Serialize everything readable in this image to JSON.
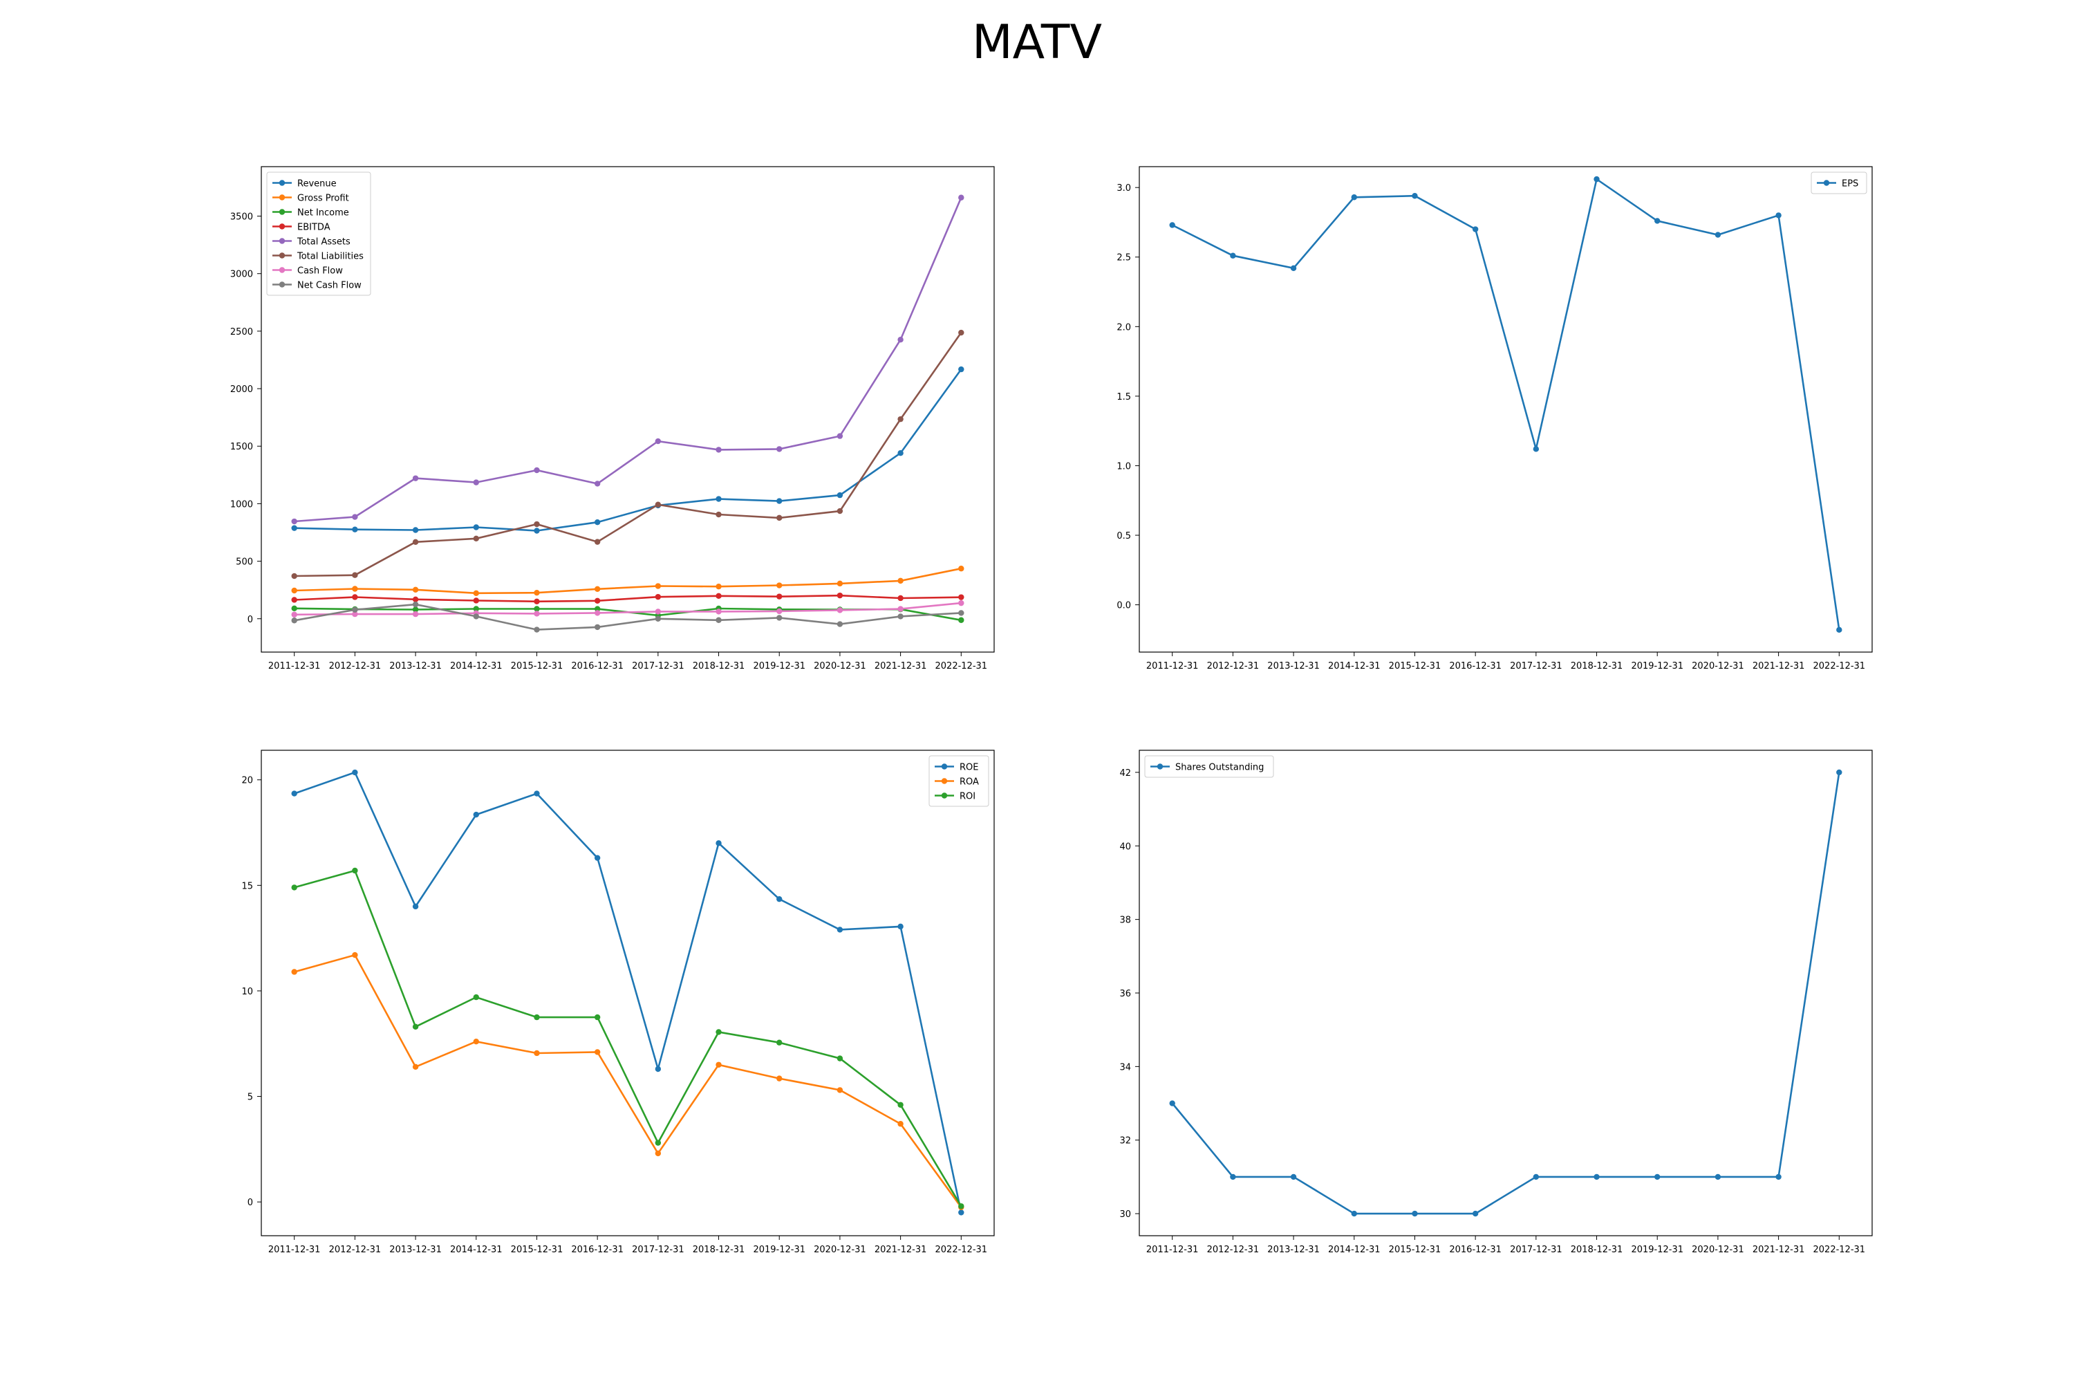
{
  "figure": {
    "title": "MATV"
  },
  "chart_data": [
    {
      "type": "line",
      "title": "",
      "xlabel": "",
      "ylabel": "",
      "x": [
        "2011-12-31",
        "2012-12-31",
        "2013-12-31",
        "2014-12-31",
        "2015-12-31",
        "2016-12-31",
        "2017-12-31",
        "2018-12-31",
        "2019-12-31",
        "2020-12-31",
        "2021-12-31",
        "2022-12-31"
      ],
      "ylim": [
        -290,
        3930
      ],
      "yticks": [
        0,
        500,
        1000,
        1500,
        2000,
        2500,
        3000,
        3500
      ],
      "grid": false,
      "legend": "upper left",
      "series": [
        {
          "name": "Revenue",
          "color": "#1f77b4",
          "values": [
            788,
            776,
            771,
            795,
            765,
            839,
            985,
            1041,
            1023,
            1074,
            1440,
            2168
          ]
        },
        {
          "name": "Gross Profit",
          "color": "#ff7f0e",
          "values": [
            245,
            260,
            252,
            222,
            226,
            258,
            284,
            280,
            290,
            306,
            330,
            436
          ]
        },
        {
          "name": "Net Income",
          "color": "#2ca02c",
          "values": [
            90,
            83,
            80,
            86,
            86,
            85,
            29,
            89,
            81,
            80,
            82,
            -12
          ]
        },
        {
          "name": "EBITDA",
          "color": "#d62728",
          "values": [
            164,
            188,
            168,
            158,
            150,
            156,
            190,
            198,
            193,
            202,
            179,
            187
          ]
        },
        {
          "name": "Total Assets",
          "color": "#9467bd",
          "values": [
            846,
            885,
            1221,
            1185,
            1291,
            1174,
            1543,
            1469,
            1475,
            1588,
            2426,
            3661
          ]
        },
        {
          "name": "Total Liabilities",
          "color": "#8c564b",
          "values": [
            371,
            379,
            667,
            697,
            822,
            668,
            992,
            906,
            877,
            936,
            1735,
            2487
          ]
        },
        {
          "name": "Cash Flow",
          "color": "#e377c2",
          "values": [
            36,
            40,
            40,
            48,
            44,
            50,
            62,
            62,
            65,
            74,
            85,
            136
          ]
        },
        {
          "name": "Net Cash Flow",
          "color": "#7f7f7f",
          "values": [
            -15,
            78,
            124,
            20,
            -95,
            -73,
            0,
            -12,
            8,
            -47,
            20,
            50
          ]
        }
      ]
    },
    {
      "type": "line",
      "title": "",
      "xlabel": "",
      "ylabel": "",
      "x": [
        "2011-12-31",
        "2012-12-31",
        "2013-12-31",
        "2014-12-31",
        "2015-12-31",
        "2016-12-31",
        "2017-12-31",
        "2018-12-31",
        "2019-12-31",
        "2020-12-31",
        "2021-12-31",
        "2022-12-31"
      ],
      "ylim": [
        -0.34,
        3.15
      ],
      "yticks": [
        0.0,
        0.5,
        1.0,
        1.5,
        2.0,
        2.5,
        3.0
      ],
      "grid": false,
      "legend": "upper right",
      "series": [
        {
          "name": "EPS",
          "color": "#1f77b4",
          "values": [
            2.73,
            2.51,
            2.42,
            2.93,
            2.94,
            2.7,
            1.12,
            3.06,
            2.76,
            2.66,
            2.8,
            -0.18
          ]
        }
      ]
    },
    {
      "type": "line",
      "title": "",
      "xlabel": "",
      "ylabel": "",
      "x": [
        "2011-12-31",
        "2012-12-31",
        "2013-12-31",
        "2014-12-31",
        "2015-12-31",
        "2016-12-31",
        "2017-12-31",
        "2018-12-31",
        "2019-12-31",
        "2020-12-31",
        "2021-12-31",
        "2022-12-31"
      ],
      "ylim": [
        -1.6,
        21.4
      ],
      "yticks": [
        0,
        5,
        10,
        15,
        20
      ],
      "grid": false,
      "legend": "upper right",
      "series": [
        {
          "name": "ROE",
          "color": "#1f77b4",
          "values": [
            19.35,
            20.35,
            14.0,
            18.35,
            19.35,
            16.3,
            6.3,
            17.0,
            14.35,
            12.9,
            13.05,
            -0.5
          ]
        },
        {
          "name": "ROA",
          "color": "#ff7f0e",
          "values": [
            10.9,
            11.7,
            6.4,
            7.6,
            7.05,
            7.1,
            2.3,
            6.5,
            5.85,
            5.3,
            3.7,
            -0.25
          ]
        },
        {
          "name": "ROI",
          "color": "#2ca02c",
          "values": [
            14.9,
            15.7,
            8.3,
            9.7,
            8.75,
            8.75,
            2.8,
            8.05,
            7.55,
            6.8,
            4.6,
            -0.2
          ]
        }
      ]
    },
    {
      "type": "line",
      "title": "",
      "xlabel": "",
      "ylabel": "",
      "x": [
        "2011-12-31",
        "2012-12-31",
        "2013-12-31",
        "2014-12-31",
        "2015-12-31",
        "2016-12-31",
        "2017-12-31",
        "2018-12-31",
        "2019-12-31",
        "2020-12-31",
        "2021-12-31",
        "2022-12-31"
      ],
      "ylim": [
        29.4,
        42.6
      ],
      "yticks": [
        30,
        32,
        34,
        36,
        38,
        40,
        42
      ],
      "grid": false,
      "legend": "upper left",
      "series": [
        {
          "name": "Shares Outstanding",
          "color": "#1f77b4",
          "values": [
            33,
            31,
            31,
            30,
            30,
            30,
            31,
            31,
            31,
            31,
            31,
            42
          ]
        }
      ]
    }
  ]
}
